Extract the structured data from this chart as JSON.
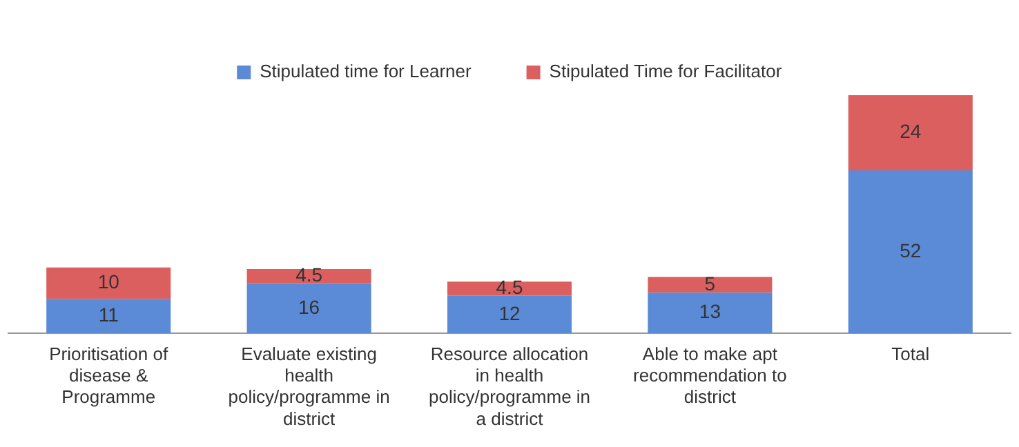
{
  "chart_data": {
    "type": "bar",
    "stacked": true,
    "data_labels": true,
    "legend": "top",
    "grid": false,
    "categories": [
      "Prioritisation of disease & Programme",
      "Evaluate existing health policy/programme in district",
      "Resource allocation in health policy/programme in a district",
      "Able to make apt recommendation to district",
      "Total"
    ],
    "series": [
      {
        "name": "Stipulated time for Learner",
        "color": "#5b8ad6",
        "values": [
          11,
          16,
          12,
          13,
          52
        ]
      },
      {
        "name": "Stipulated Time for Facilitator",
        "color": "#dc5f5f",
        "values": [
          10,
          4.5,
          4.5,
          5,
          24
        ]
      }
    ]
  }
}
